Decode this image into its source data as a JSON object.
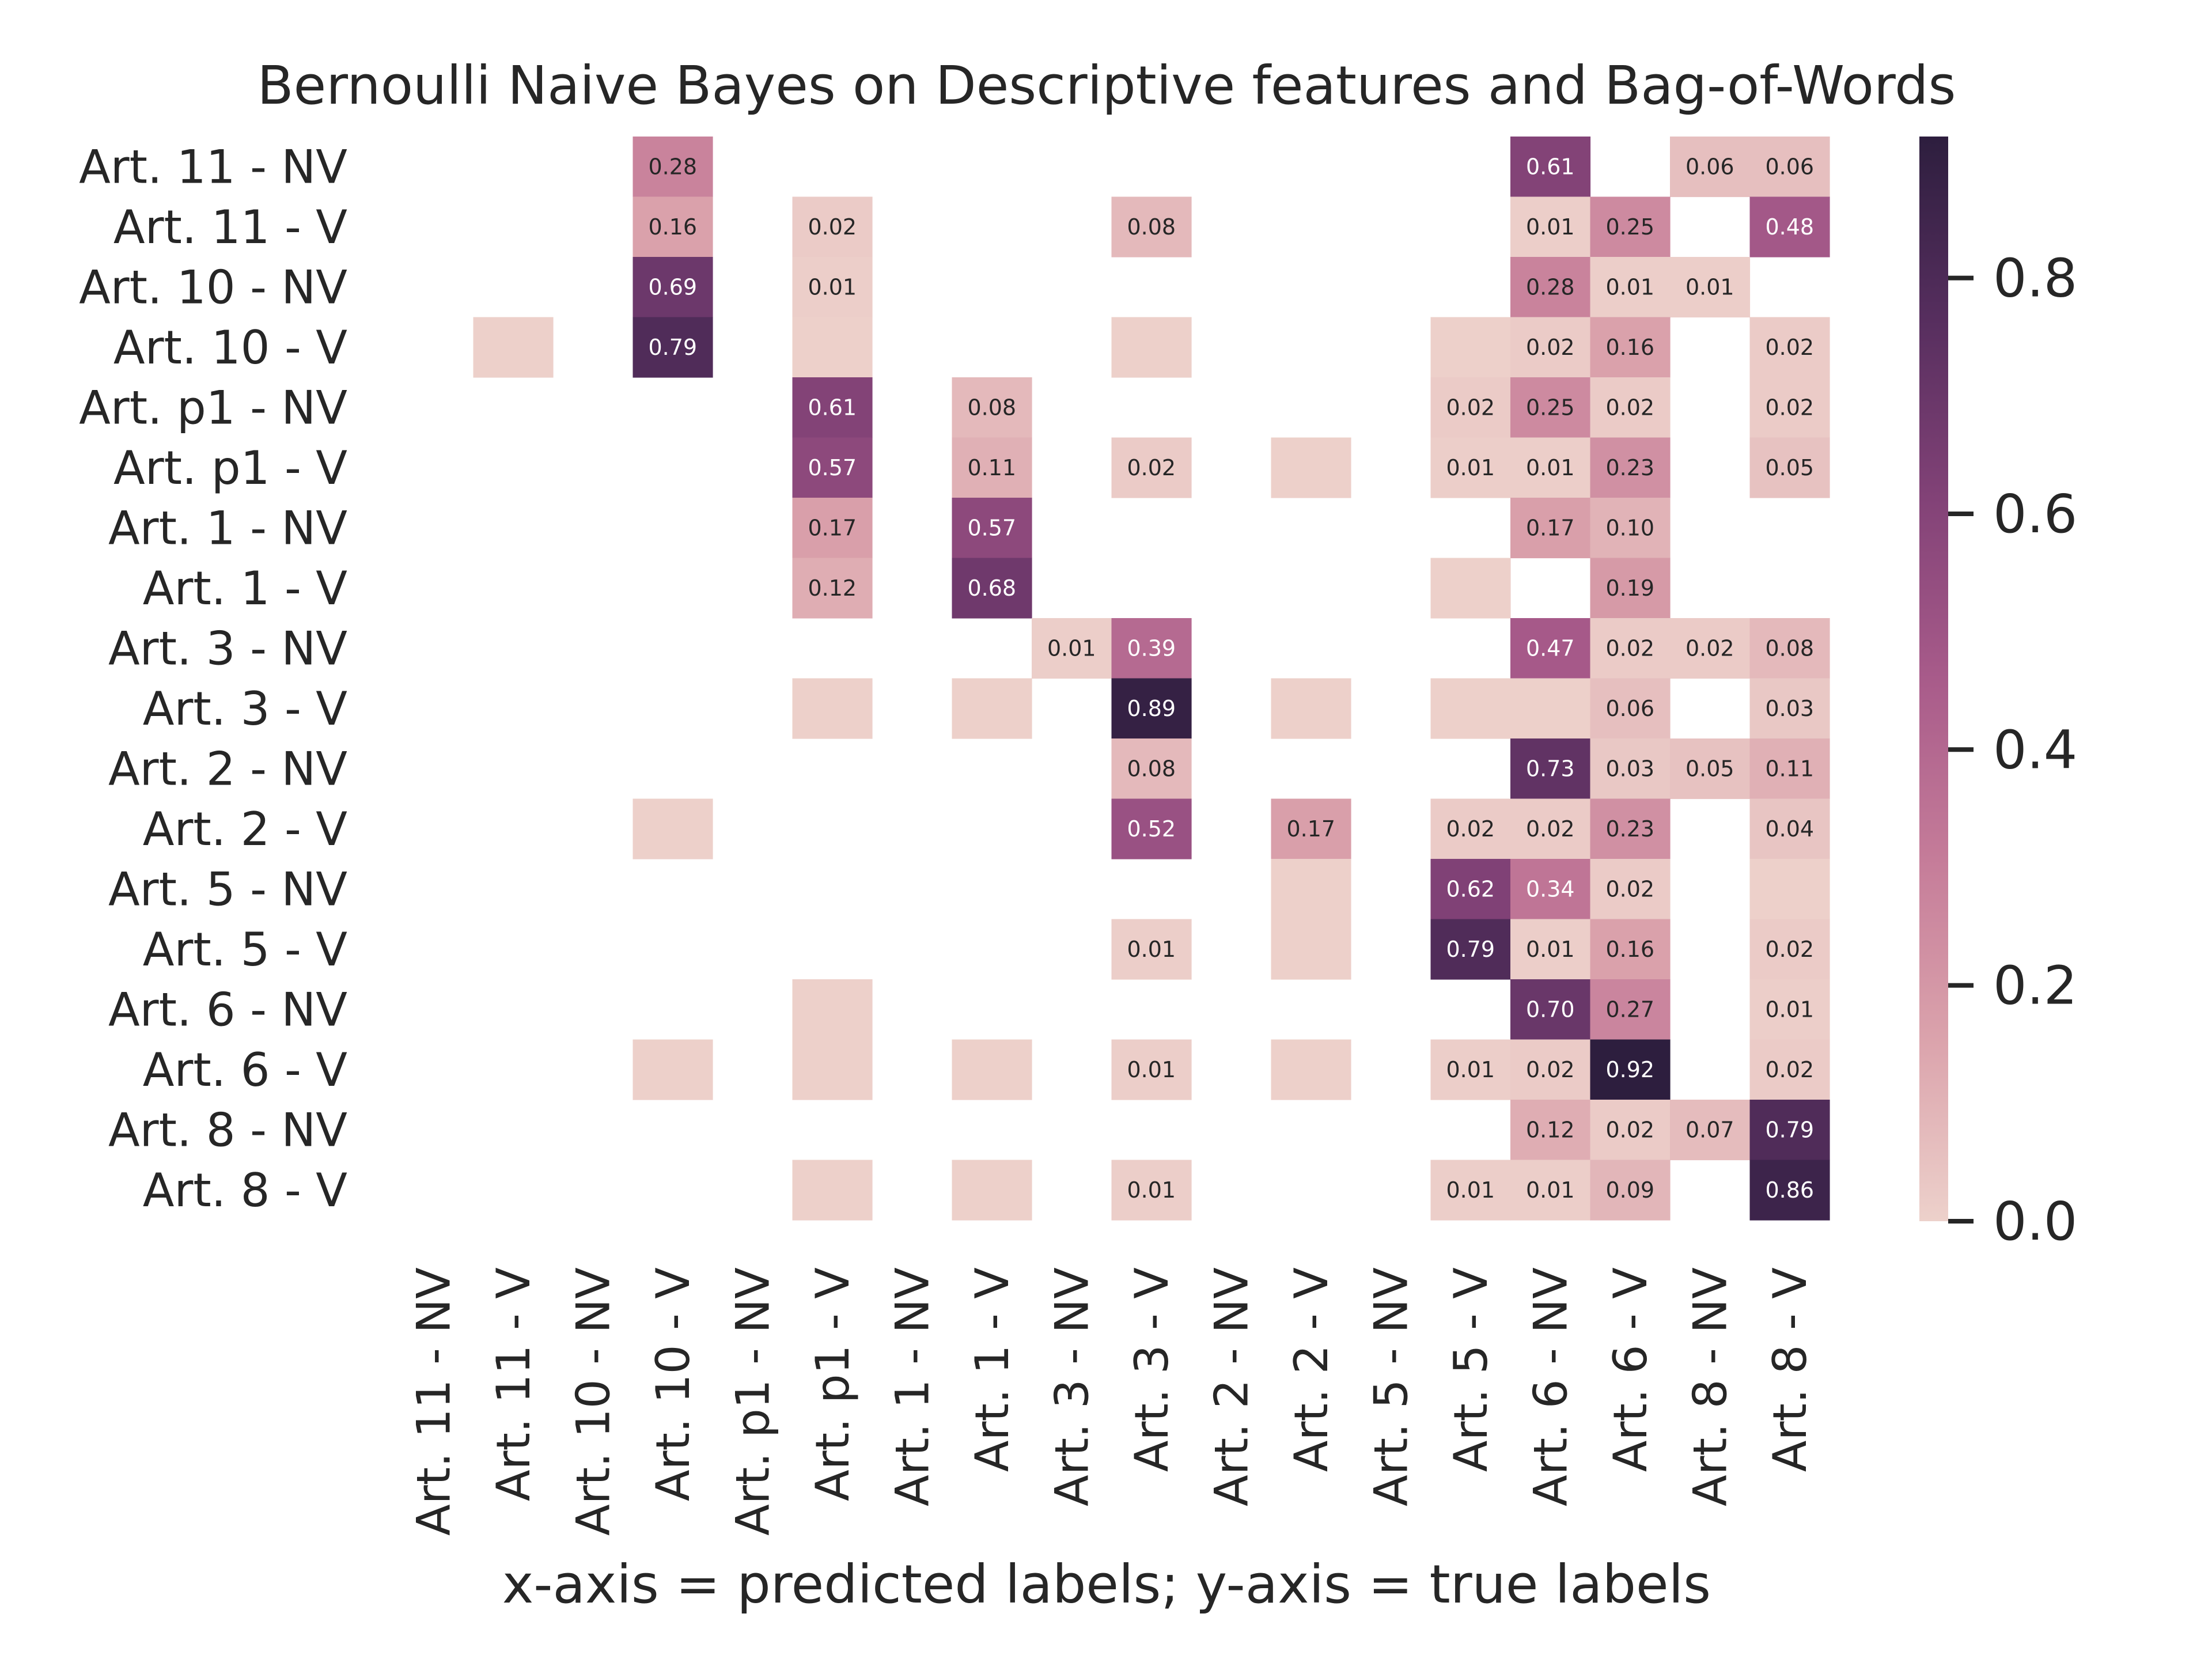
{
  "chart_data": {
    "type": "heatmap",
    "title": "Bernoulli Naive Bayes on Descriptive features and Bag-of-Words",
    "xlabel": "x-axis = predicted labels; y-axis = true labels",
    "ylabel": "",
    "x_categories": [
      "Art. 11 - NV",
      "Art. 11 - V",
      "Art. 10 - NV",
      "Art. 10 - V",
      "Art. p1 - NV",
      "Art. p1 - V",
      "Art. 1 - NV",
      "Art. 1 - V",
      "Art. 3 - NV",
      "Art. 3 - V",
      "Art. 2 - NV",
      "Art. 2 - V",
      "Art. 5 - NV",
      "Art. 5 - V",
      "Art. 6 - NV",
      "Art. 6 - V",
      "Art. 8 - NV",
      "Art. 8 - V"
    ],
    "y_categories": [
      "Art. 11 - NV",
      "Art. 11 - V",
      "Art. 10 - NV",
      "Art. 10 - V",
      "Art. p1 - NV",
      "Art. p1 - V",
      "Art. 1 - NV",
      "Art. 1 - V",
      "Art. 3 - NV",
      "Art. 3 - V",
      "Art. 2 - NV",
      "Art. 2 - V",
      "Art. 5 - NV",
      "Art. 5 - V",
      "Art. 6 - NV",
      "Art. 6 - V",
      "Art. 8 - NV",
      "Art. 8 - V"
    ],
    "cells": [
      {
        "row": 0,
        "col": 3,
        "value": 0.28,
        "label": "0.28"
      },
      {
        "row": 0,
        "col": 14,
        "value": 0.61,
        "label": "0.61"
      },
      {
        "row": 0,
        "col": 16,
        "value": 0.06,
        "label": "0.06"
      },
      {
        "row": 0,
        "col": 17,
        "value": 0.06,
        "label": "0.06"
      },
      {
        "row": 1,
        "col": 3,
        "value": 0.16,
        "label": "0.16"
      },
      {
        "row": 1,
        "col": 5,
        "value": 0.02,
        "label": "0.02"
      },
      {
        "row": 1,
        "col": 9,
        "value": 0.08,
        "label": "0.08"
      },
      {
        "row": 1,
        "col": 14,
        "value": 0.01,
        "label": "0.01"
      },
      {
        "row": 1,
        "col": 15,
        "value": 0.25,
        "label": "0.25"
      },
      {
        "row": 1,
        "col": 17,
        "value": 0.48,
        "label": "0.48"
      },
      {
        "row": 2,
        "col": 3,
        "value": 0.69,
        "label": "0.69"
      },
      {
        "row": 2,
        "col": 5,
        "value": 0.01,
        "label": "0.01"
      },
      {
        "row": 2,
        "col": 14,
        "value": 0.28,
        "label": "0.28"
      },
      {
        "row": 2,
        "col": 15,
        "value": 0.01,
        "label": "0.01"
      },
      {
        "row": 2,
        "col": 16,
        "value": 0.01,
        "label": "0.01"
      },
      {
        "row": 3,
        "col": 1,
        "value": 0.004,
        "label": ""
      },
      {
        "row": 3,
        "col": 3,
        "value": 0.79,
        "label": "0.79"
      },
      {
        "row": 3,
        "col": 5,
        "value": 0.004,
        "label": ""
      },
      {
        "row": 3,
        "col": 9,
        "value": 0.004,
        "label": ""
      },
      {
        "row": 3,
        "col": 13,
        "value": 0.004,
        "label": ""
      },
      {
        "row": 3,
        "col": 14,
        "value": 0.02,
        "label": "0.02"
      },
      {
        "row": 3,
        "col": 15,
        "value": 0.16,
        "label": "0.16"
      },
      {
        "row": 3,
        "col": 17,
        "value": 0.02,
        "label": "0.02"
      },
      {
        "row": 4,
        "col": 5,
        "value": 0.61,
        "label": "0.61"
      },
      {
        "row": 4,
        "col": 7,
        "value": 0.08,
        "label": "0.08"
      },
      {
        "row": 4,
        "col": 13,
        "value": 0.02,
        "label": "0.02"
      },
      {
        "row": 4,
        "col": 14,
        "value": 0.25,
        "label": "0.25"
      },
      {
        "row": 4,
        "col": 15,
        "value": 0.02,
        "label": "0.02"
      },
      {
        "row": 4,
        "col": 17,
        "value": 0.02,
        "label": "0.02"
      },
      {
        "row": 5,
        "col": 5,
        "value": 0.57,
        "label": "0.57"
      },
      {
        "row": 5,
        "col": 7,
        "value": 0.11,
        "label": "0.11"
      },
      {
        "row": 5,
        "col": 9,
        "value": 0.02,
        "label": "0.02"
      },
      {
        "row": 5,
        "col": 11,
        "value": 0.004,
        "label": ""
      },
      {
        "row": 5,
        "col": 13,
        "value": 0.01,
        "label": "0.01"
      },
      {
        "row": 5,
        "col": 14,
        "value": 0.01,
        "label": "0.01"
      },
      {
        "row": 5,
        "col": 15,
        "value": 0.23,
        "label": "0.23"
      },
      {
        "row": 5,
        "col": 17,
        "value": 0.05,
        "label": "0.05"
      },
      {
        "row": 6,
        "col": 5,
        "value": 0.17,
        "label": "0.17"
      },
      {
        "row": 6,
        "col": 7,
        "value": 0.57,
        "label": "0.57"
      },
      {
        "row": 6,
        "col": 14,
        "value": 0.17,
        "label": "0.17"
      },
      {
        "row": 6,
        "col": 15,
        "value": 0.1,
        "label": "0.10"
      },
      {
        "row": 7,
        "col": 5,
        "value": 0.12,
        "label": "0.12"
      },
      {
        "row": 7,
        "col": 7,
        "value": 0.68,
        "label": "0.68"
      },
      {
        "row": 7,
        "col": 13,
        "value": 0.004,
        "label": ""
      },
      {
        "row": 7,
        "col": 15,
        "value": 0.19,
        "label": "0.19"
      },
      {
        "row": 8,
        "col": 8,
        "value": 0.01,
        "label": "0.01"
      },
      {
        "row": 8,
        "col": 9,
        "value": 0.39,
        "label": "0.39"
      },
      {
        "row": 8,
        "col": 14,
        "value": 0.47,
        "label": "0.47"
      },
      {
        "row": 8,
        "col": 15,
        "value": 0.02,
        "label": "0.02"
      },
      {
        "row": 8,
        "col": 16,
        "value": 0.02,
        "label": "0.02"
      },
      {
        "row": 8,
        "col": 17,
        "value": 0.08,
        "label": "0.08"
      },
      {
        "row": 9,
        "col": 5,
        "value": 0.004,
        "label": ""
      },
      {
        "row": 9,
        "col": 7,
        "value": 0.004,
        "label": ""
      },
      {
        "row": 9,
        "col": 9,
        "value": 0.89,
        "label": "0.89"
      },
      {
        "row": 9,
        "col": 11,
        "value": 0.004,
        "label": ""
      },
      {
        "row": 9,
        "col": 13,
        "value": 0.004,
        "label": ""
      },
      {
        "row": 9,
        "col": 14,
        "value": 0.004,
        "label": ""
      },
      {
        "row": 9,
        "col": 15,
        "value": 0.06,
        "label": "0.06"
      },
      {
        "row": 9,
        "col": 17,
        "value": 0.03,
        "label": "0.03"
      },
      {
        "row": 10,
        "col": 9,
        "value": 0.08,
        "label": "0.08"
      },
      {
        "row": 10,
        "col": 14,
        "value": 0.73,
        "label": "0.73"
      },
      {
        "row": 10,
        "col": 15,
        "value": 0.03,
        "label": "0.03"
      },
      {
        "row": 10,
        "col": 16,
        "value": 0.05,
        "label": "0.05"
      },
      {
        "row": 10,
        "col": 17,
        "value": 0.11,
        "label": "0.11"
      },
      {
        "row": 11,
        "col": 3,
        "value": 0.004,
        "label": ""
      },
      {
        "row": 11,
        "col": 9,
        "value": 0.52,
        "label": "0.52"
      },
      {
        "row": 11,
        "col": 11,
        "value": 0.17,
        "label": "0.17"
      },
      {
        "row": 11,
        "col": 13,
        "value": 0.02,
        "label": "0.02"
      },
      {
        "row": 11,
        "col": 14,
        "value": 0.02,
        "label": "0.02"
      },
      {
        "row": 11,
        "col": 15,
        "value": 0.23,
        "label": "0.23"
      },
      {
        "row": 11,
        "col": 17,
        "value": 0.04,
        "label": "0.04"
      },
      {
        "row": 12,
        "col": 11,
        "value": 0.004,
        "label": ""
      },
      {
        "row": 12,
        "col": 13,
        "value": 0.62,
        "label": "0.62"
      },
      {
        "row": 12,
        "col": 14,
        "value": 0.34,
        "label": "0.34"
      },
      {
        "row": 12,
        "col": 15,
        "value": 0.02,
        "label": "0.02"
      },
      {
        "row": 12,
        "col": 17,
        "value": 0.004,
        "label": ""
      },
      {
        "row": 13,
        "col": 9,
        "value": 0.01,
        "label": "0.01"
      },
      {
        "row": 13,
        "col": 11,
        "value": 0.004,
        "label": ""
      },
      {
        "row": 13,
        "col": 13,
        "value": 0.79,
        "label": "0.79"
      },
      {
        "row": 13,
        "col": 14,
        "value": 0.01,
        "label": "0.01"
      },
      {
        "row": 13,
        "col": 15,
        "value": 0.16,
        "label": "0.16"
      },
      {
        "row": 13,
        "col": 17,
        "value": 0.02,
        "label": "0.02"
      },
      {
        "row": 14,
        "col": 5,
        "value": 0.004,
        "label": ""
      },
      {
        "row": 14,
        "col": 14,
        "value": 0.7,
        "label": "0.70"
      },
      {
        "row": 14,
        "col": 15,
        "value": 0.27,
        "label": "0.27"
      },
      {
        "row": 14,
        "col": 17,
        "value": 0.01,
        "label": "0.01"
      },
      {
        "row": 15,
        "col": 3,
        "value": 0.004,
        "label": ""
      },
      {
        "row": 15,
        "col": 5,
        "value": 0.004,
        "label": ""
      },
      {
        "row": 15,
        "col": 7,
        "value": 0.004,
        "label": ""
      },
      {
        "row": 15,
        "col": 9,
        "value": 0.01,
        "label": "0.01"
      },
      {
        "row": 15,
        "col": 11,
        "value": 0.004,
        "label": ""
      },
      {
        "row": 15,
        "col": 13,
        "value": 0.01,
        "label": "0.01"
      },
      {
        "row": 15,
        "col": 14,
        "value": 0.02,
        "label": "0.02"
      },
      {
        "row": 15,
        "col": 15,
        "value": 0.92,
        "label": "0.92"
      },
      {
        "row": 15,
        "col": 17,
        "value": 0.02,
        "label": "0.02"
      },
      {
        "row": 16,
        "col": 14,
        "value": 0.12,
        "label": "0.12"
      },
      {
        "row": 16,
        "col": 15,
        "value": 0.02,
        "label": "0.02"
      },
      {
        "row": 16,
        "col": 16,
        "value": 0.07,
        "label": "0.07"
      },
      {
        "row": 16,
        "col": 17,
        "value": 0.79,
        "label": "0.79"
      },
      {
        "row": 17,
        "col": 5,
        "value": 0.004,
        "label": ""
      },
      {
        "row": 17,
        "col": 7,
        "value": 0.004,
        "label": ""
      },
      {
        "row": 17,
        "col": 9,
        "value": 0.01,
        "label": "0.01"
      },
      {
        "row": 17,
        "col": 13,
        "value": 0.01,
        "label": "0.01"
      },
      {
        "row": 17,
        "col": 14,
        "value": 0.01,
        "label": "0.01"
      },
      {
        "row": 17,
        "col": 15,
        "value": 0.09,
        "label": "0.09"
      },
      {
        "row": 17,
        "col": 17,
        "value": 0.86,
        "label": "0.86"
      }
    ],
    "colorbar": {
      "min": 0.0,
      "max": 0.92,
      "ticks": [
        0.0,
        0.2,
        0.4,
        0.6,
        0.8
      ],
      "tick_labels": [
        "0.0",
        "0.2",
        "0.4",
        "0.6",
        "0.8"
      ],
      "colors": [
        "#edd1cb",
        "#dba3ac",
        "#c57c99",
        "#a85b8a",
        "#824277",
        "#562e5e",
        "#2d1e3e"
      ]
    },
    "grid": false
  }
}
